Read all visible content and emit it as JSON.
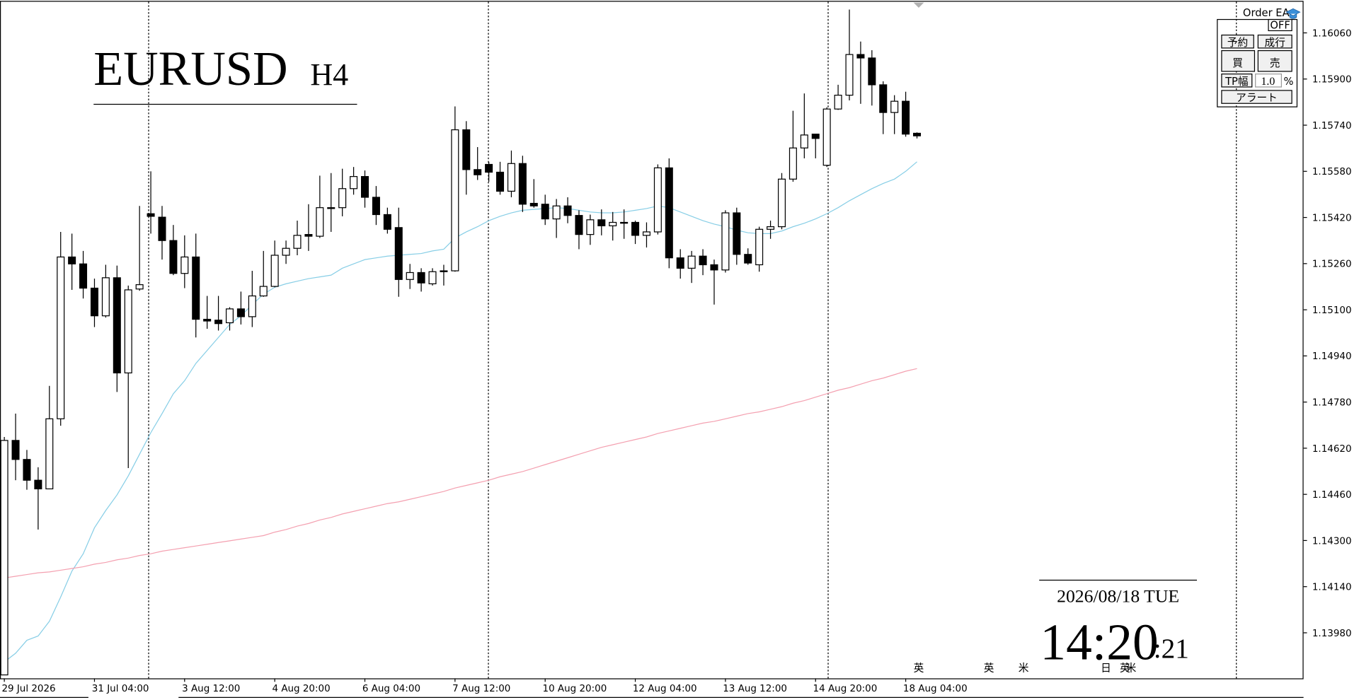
{
  "chart_data": {
    "type": "candlestick",
    "title": "EURUSD",
    "timeframe": "H4",
    "categories": [
      "29 Jul 2026",
      null,
      null,
      null,
      null,
      null,
      null,
      null,
      "31 Jul 04:00",
      null,
      null,
      null,
      null,
      null,
      null,
      null,
      "3 Aug 12:00",
      null,
      null,
      null,
      null,
      null,
      null,
      null,
      "4 Aug 20:00",
      null,
      null,
      null,
      null,
      null,
      null,
      null,
      "6 Aug 04:00",
      null,
      null,
      null,
      null,
      null,
      null,
      null,
      "7 Aug 12:00",
      null,
      null,
      null,
      null,
      null,
      null,
      null,
      "10 Aug 20:00",
      null,
      null,
      null,
      null,
      null,
      null,
      null,
      "12 Aug 04:00",
      null,
      null,
      null,
      null,
      null,
      null,
      null,
      "13 Aug 12:00",
      null,
      null,
      null,
      null,
      null,
      null,
      null,
      "14 Aug 20:00",
      null,
      null,
      null,
      null,
      null,
      null,
      null,
      "18 Aug 04:00",
      null
    ],
    "open": [
      1.13834,
      1.14647,
      1.14581,
      1.14509,
      1.14479,
      1.14722,
      1.15283,
      1.15259,
      1.15175,
      1.15079,
      1.15211,
      1.14881,
      1.15172,
      1.15433,
      1.15421,
      1.1534,
      1.15226,
      1.15283,
      1.15067,
      1.15064,
      1.15055,
      1.15103,
      1.15076,
      1.15148,
      1.15181,
      1.15289,
      1.15313,
      1.15361,
      1.15355,
      1.15454,
      1.15454,
      1.1552,
      1.15562,
      1.1549,
      1.1543,
      1.15385,
      1.15205,
      1.15229,
      1.1519,
      1.15232,
      1.15235,
      1.15724,
      1.15586,
      1.15604,
      1.15577,
      1.15511,
      1.15607,
      1.15469,
      1.15466,
      1.15415,
      1.1546,
      1.15427,
      1.15361,
      1.15412,
      1.15391,
      1.15403,
      1.15403,
      1.15358,
      1.1537,
      1.15592,
      1.1528,
      1.15244,
      1.15286,
      1.15256,
      1.15238,
      1.15436,
      1.15292,
      1.15256,
      1.15379,
      1.15388,
      1.15553,
      1.15661,
      1.15709,
      1.15601,
      1.15796,
      1.15844,
      1.15985,
      1.15973,
      1.1588,
      1.15784,
      1.15823,
      1.15712
    ],
    "high": [
      1.14659,
      1.1474,
      1.14614,
      1.14554,
      1.14836,
      1.1537,
      1.15364,
      1.15304,
      1.15208,
      1.15256,
      1.15253,
      1.15184,
      1.1546,
      1.1558,
      1.1546,
      1.15394,
      1.15358,
      1.15364,
      1.15148,
      1.15148,
      1.15109,
      1.15163,
      1.15235,
      1.15304,
      1.1534,
      1.1534,
      1.15409,
      1.15466,
      1.15565,
      1.15574,
      1.15589,
      1.15595,
      1.15583,
      1.15529,
      1.15454,
      1.15454,
      1.15259,
      1.15244,
      1.15244,
      1.15256,
      1.15805,
      1.15754,
      1.15664,
      1.15613,
      1.15613,
      1.15652,
      1.15634,
      1.15553,
      1.15499,
      1.15484,
      1.1549,
      1.15445,
      1.1543,
      1.15448,
      1.15439,
      1.15448,
      1.15409,
      1.15403,
      1.15604,
      1.15625,
      1.1531,
      1.15304,
      1.1531,
      1.15274,
      1.15445,
      1.15454,
      1.15313,
      1.15388,
      1.15409,
      1.15574,
      1.1579,
      1.1585,
      1.15709,
      1.15802,
      1.1588,
      1.16141,
      1.1603,
      1.16,
      1.15892,
      1.15844,
      1.15856,
      1.15715
    ],
    "low": [
      1.13834,
      1.14509,
      1.14476,
      1.14338,
      1.14479,
      1.14698,
      1.15169,
      1.15139,
      1.1504,
      1.15073,
      1.14815,
      1.14551,
      1.15166,
      1.15364,
      1.15274,
      1.1522,
      1.15175,
      1.15004,
      1.15034,
      1.15028,
      1.15028,
      1.15049,
      1.1504,
      1.15145,
      1.15178,
      1.15259,
      1.15289,
      1.15304,
      1.15349,
      1.1537,
      1.15424,
      1.15499,
      1.15454,
      1.15394,
      1.15364,
      1.15145,
      1.15172,
      1.15163,
      1.15184,
      1.15184,
      1.15232,
      1.15499,
      1.1555,
      1.15544,
      1.15499,
      1.1549,
      1.15439,
      1.15454,
      1.15394,
      1.15349,
      1.154,
      1.1531,
      1.15325,
      1.15358,
      1.1534,
      1.15346,
      1.15328,
      1.15316,
      1.15361,
      1.15244,
      1.15208,
      1.15193,
      1.1522,
      1.15118,
      1.15229,
      1.15256,
      1.15256,
      1.15232,
      1.15346,
      1.15379,
      1.15544,
      1.15625,
      1.15625,
      1.15595,
      1.15793,
      1.15826,
      1.15814,
      1.15808,
      1.15709,
      1.15709,
      1.157,
      1.15694
    ],
    "close": [
      1.14647,
      1.14581,
      1.14509,
      1.14479,
      1.14722,
      1.15283,
      1.15259,
      1.15175,
      1.15079,
      1.15211,
      1.14881,
      1.15169,
      1.15187,
      1.15424,
      1.1534,
      1.15226,
      1.15283,
      1.15067,
      1.15061,
      1.15052,
      1.15103,
      1.15076,
      1.15148,
      1.15181,
      1.15289,
      1.15313,
      1.15358,
      1.15355,
      1.15454,
      1.15451,
      1.1552,
      1.15562,
      1.1549,
      1.1543,
      1.15379,
      1.15205,
      1.15229,
      1.15193,
      1.15232,
      1.15235,
      1.15724,
      1.15586,
      1.15568,
      1.15577,
      1.15511,
      1.15607,
      1.15466,
      1.1546,
      1.15415,
      1.1546,
      1.15427,
      1.15361,
      1.15412,
      1.15391,
      1.15403,
      1.154,
      1.15358,
      1.1537,
      1.15592,
      1.1528,
      1.15244,
      1.15286,
      1.15256,
      1.15238,
      1.15436,
      1.15292,
      1.15262,
      1.15379,
      1.15388,
      1.15553,
      1.15661,
      1.15706,
      1.15694,
      1.15796,
      1.15844,
      1.15985,
      1.15973,
      1.1588,
      1.15784,
      1.15823,
      1.15709,
      1.15703
    ],
    "up_color": "#ffffff",
    "down_color": "#000000",
    "wick_color": "#000000",
    "lines": [
      {
        "color": "#87cee6",
        "values": [
          1.13879,
          1.13909,
          1.13954,
          1.13969,
          1.1402,
          1.14104,
          1.14194,
          1.14254,
          1.14344,
          1.14404,
          1.14458,
          1.14524,
          1.14599,
          1.14674,
          1.1474,
          1.14809,
          1.14854,
          1.14914,
          1.14959,
          1.15004,
          1.15049,
          1.15079,
          1.15118,
          1.15154,
          1.15178,
          1.1519,
          1.15199,
          1.15208,
          1.15214,
          1.1522,
          1.15244,
          1.15259,
          1.15274,
          1.1528,
          1.15286,
          1.15289,
          1.15292,
          1.15295,
          1.15304,
          1.1531,
          1.15349,
          1.1537,
          1.15388,
          1.15409,
          1.15424,
          1.15436,
          1.15445,
          1.15448,
          1.15451,
          1.15454,
          1.15451,
          1.15445,
          1.15439,
          1.15436,
          1.15436,
          1.15439,
          1.15445,
          1.15451,
          1.1546,
          1.15454,
          1.15439,
          1.15424,
          1.15409,
          1.15397,
          1.15388,
          1.15376,
          1.15367,
          1.15364,
          1.15364,
          1.15373,
          1.15388,
          1.154,
          1.15415,
          1.15433,
          1.15454,
          1.15478,
          1.15499,
          1.1552,
          1.15538,
          1.15553,
          1.1558,
          1.15613
        ]
      },
      {
        "color": "#f4a0b0",
        "values": [
          1.1417,
          1.14176,
          1.14182,
          1.14188,
          1.14191,
          1.14197,
          1.14203,
          1.14209,
          1.14218,
          1.14224,
          1.14233,
          1.14239,
          1.14248,
          1.14254,
          1.14263,
          1.14269,
          1.14275,
          1.14281,
          1.14287,
          1.14293,
          1.14299,
          1.14305,
          1.14311,
          1.14317,
          1.14329,
          1.14338,
          1.1435,
          1.14359,
          1.14371,
          1.1438,
          1.14392,
          1.14401,
          1.1441,
          1.14419,
          1.14428,
          1.14434,
          1.14443,
          1.14452,
          1.14461,
          1.1447,
          1.14482,
          1.14491,
          1.145,
          1.14509,
          1.14521,
          1.1453,
          1.14539,
          1.14551,
          1.14563,
          1.14575,
          1.14587,
          1.14599,
          1.14611,
          1.14623,
          1.14632,
          1.14641,
          1.1465,
          1.14659,
          1.14671,
          1.1468,
          1.14689,
          1.14698,
          1.14707,
          1.14713,
          1.14722,
          1.14731,
          1.1474,
          1.14746,
          1.14755,
          1.14764,
          1.14776,
          1.14785,
          1.14797,
          1.14809,
          1.14821,
          1.1483,
          1.14842,
          1.14854,
          1.14863,
          1.14875,
          1.14887,
          1.14896
        ]
      }
    ],
    "ylim": [
      1.13822,
      1.16168
    ],
    "yticks": [
      {
        "value": 1.1606,
        "label": "1.16060"
      },
      {
        "value": 1.159,
        "label": "1.15900"
      },
      {
        "value": 1.1574,
        "label": "1.15740"
      },
      {
        "value": 1.1558,
        "label": "1.15580"
      },
      {
        "value": 1.1542,
        "label": "1.15420"
      },
      {
        "value": 1.1526,
        "label": "1.15260"
      },
      {
        "value": 1.151,
        "label": "1.15100"
      },
      {
        "value": 1.1494,
        "label": "1.14940"
      },
      {
        "value": 1.1478,
        "label": "1.14780"
      },
      {
        "value": 1.1462,
        "label": "1.14620"
      },
      {
        "value": 1.1446,
        "label": "1.14460"
      },
      {
        "value": 1.143,
        "label": "1.14300"
      },
      {
        "value": 1.1414,
        "label": "1.14140"
      },
      {
        "value": 1.1398,
        "label": "1.13980"
      }
    ],
    "grid": false
  },
  "order_panel": {
    "title": "Order EA",
    "toggle": "OFF",
    "reserve": "予約",
    "market": "成行",
    "buy": "買",
    "sell": "売",
    "tp_label": "TP幅",
    "tp_value": "1.0",
    "tp_unit": "%",
    "alert": "アラート"
  },
  "clock": {
    "date": "2026/08/18 TUE",
    "time": "14:20",
    "seconds": ":21"
  },
  "event_markers": [
    "英",
    "英",
    "米",
    "日",
    "英",
    "米"
  ]
}
